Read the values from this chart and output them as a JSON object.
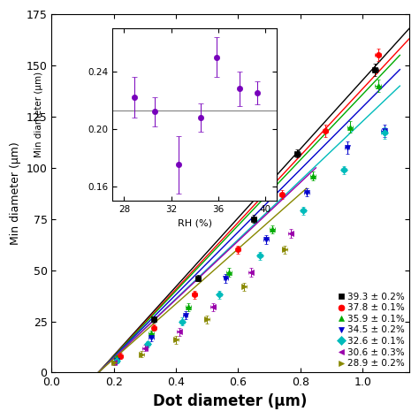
{
  "xlabel": "Dot diameter (μm)",
  "ylabel": "Min diameter (μm)",
  "xlim": [
    0.1,
    1.15
  ],
  "ylim": [
    0,
    175
  ],
  "xticks": [
    0.0,
    0.2,
    0.4,
    0.6,
    0.8,
    1.0
  ],
  "yticks": [
    0,
    25,
    50,
    75,
    100,
    125,
    150,
    175
  ],
  "series": [
    {
      "label": "39.3 ± 0.2%",
      "color": "black",
      "marker": "s",
      "x": [
        0.33,
        0.47,
        0.65,
        0.79,
        1.04
      ],
      "y": [
        26,
        46,
        75,
        107,
        148
      ],
      "xerr": [
        0.008,
        0.008,
        0.008,
        0.01,
        0.01
      ],
      "yerr": [
        1.5,
        1.5,
        2,
        2,
        3
      ],
      "fit_x": [
        0.15,
        1.15
      ],
      "fit_y": [
        0,
        168
      ]
    },
    {
      "label": "37.8 ± 0.1%",
      "color": "red",
      "marker": "o",
      "x": [
        0.22,
        0.33,
        0.46,
        0.6,
        0.74,
        0.88,
        1.05
      ],
      "y": [
        8,
        22,
        38,
        60,
        87,
        118,
        155
      ],
      "xerr": [
        0.008,
        0.008,
        0.008,
        0.008,
        0.008,
        0.008,
        0.01
      ],
      "yerr": [
        1.5,
        1.5,
        2,
        2,
        2,
        3,
        3
      ],
      "fit_x": [
        0.15,
        1.15
      ],
      "fit_y": [
        0,
        163
      ]
    },
    {
      "label": "35.9 ± 0.1%",
      "color": "#00aa00",
      "marker": "^",
      "x": [
        0.21,
        0.32,
        0.44,
        0.57,
        0.71,
        0.84,
        0.96,
        1.05
      ],
      "y": [
        7,
        19,
        32,
        49,
        70,
        96,
        120,
        140
      ],
      "xerr": [
        0.008,
        0.008,
        0.008,
        0.008,
        0.008,
        0.008,
        0.008,
        0.01
      ],
      "yerr": [
        1.5,
        1.5,
        2,
        2,
        2,
        2,
        3,
        3
      ],
      "fit_x": [
        0.15,
        1.12
      ],
      "fit_y": [
        0,
        155
      ]
    },
    {
      "label": "34.5 ± 0.2%",
      "color": "#0000cc",
      "marker": "v",
      "x": [
        0.21,
        0.32,
        0.43,
        0.56,
        0.69,
        0.82,
        0.95,
        1.07
      ],
      "y": [
        6,
        17,
        28,
        46,
        65,
        88,
        110,
        118
      ],
      "xerr": [
        0.008,
        0.008,
        0.008,
        0.008,
        0.008,
        0.008,
        0.008,
        0.01
      ],
      "yerr": [
        1.5,
        1.5,
        2,
        2,
        2,
        2,
        3,
        3
      ],
      "fit_x": [
        0.15,
        1.12
      ],
      "fit_y": [
        0,
        148
      ]
    },
    {
      "label": "32.6 ± 0.1%",
      "color": "#00bbbb",
      "marker": "D",
      "x": [
        0.21,
        0.31,
        0.42,
        0.54,
        0.67,
        0.81,
        0.94,
        1.07
      ],
      "y": [
        6,
        14,
        25,
        38,
        57,
        79,
        99,
        117
      ],
      "xerr": [
        0.008,
        0.008,
        0.008,
        0.008,
        0.008,
        0.008,
        0.008,
        0.01
      ],
      "yerr": [
        1.5,
        1.5,
        2,
        2,
        2,
        2,
        2,
        3
      ],
      "fit_x": [
        0.15,
        1.12
      ],
      "fit_y": [
        0,
        140
      ]
    },
    {
      "label": "30.6 ± 0.3%",
      "color": "#9900aa",
      "marker": "<",
      "x": [
        0.2,
        0.3,
        0.41,
        0.52,
        0.64,
        0.77
      ],
      "y": [
        5,
        12,
        20,
        32,
        49,
        68
      ],
      "xerr": [
        0.008,
        0.008,
        0.008,
        0.008,
        0.008,
        0.008
      ],
      "yerr": [
        1.5,
        1.5,
        2,
        2,
        2,
        2
      ],
      "fit_x": [
        0.15,
        0.85
      ],
      "fit_y": [
        0,
        100
      ]
    },
    {
      "label": "28.9 ± 0.2%",
      "color": "#888800",
      "marker": ">",
      "x": [
        0.2,
        0.29,
        0.4,
        0.5,
        0.62,
        0.75
      ],
      "y": [
        5,
        9,
        16,
        26,
        42,
        60
      ],
      "xerr": [
        0.008,
        0.008,
        0.008,
        0.008,
        0.008,
        0.008
      ],
      "yerr": [
        1.5,
        1.5,
        2,
        2,
        2,
        2
      ],
      "fit_x": [
        0.15,
        0.82
      ],
      "fit_y": [
        0,
        90
      ]
    }
  ],
  "inset": {
    "xlim": [
      27.0,
      41.0
    ],
    "ylim": [
      0.15,
      0.27
    ],
    "xticks": [
      28,
      32,
      36,
      40
    ],
    "yticks": [
      0.16,
      0.2,
      0.24
    ],
    "xlabel": "RH (%)",
    "ylabel": "Min diameter (μm)",
    "hline": 0.213,
    "x": [
      28.9,
      30.6,
      32.6,
      34.5,
      35.9,
      37.8,
      39.3
    ],
    "y": [
      0.222,
      0.212,
      0.175,
      0.208,
      0.25,
      0.228,
      0.225
    ],
    "yerr": [
      0.014,
      0.01,
      0.02,
      0.01,
      0.014,
      0.012,
      0.008
    ],
    "color": "#7700bb",
    "marker": "o"
  }
}
